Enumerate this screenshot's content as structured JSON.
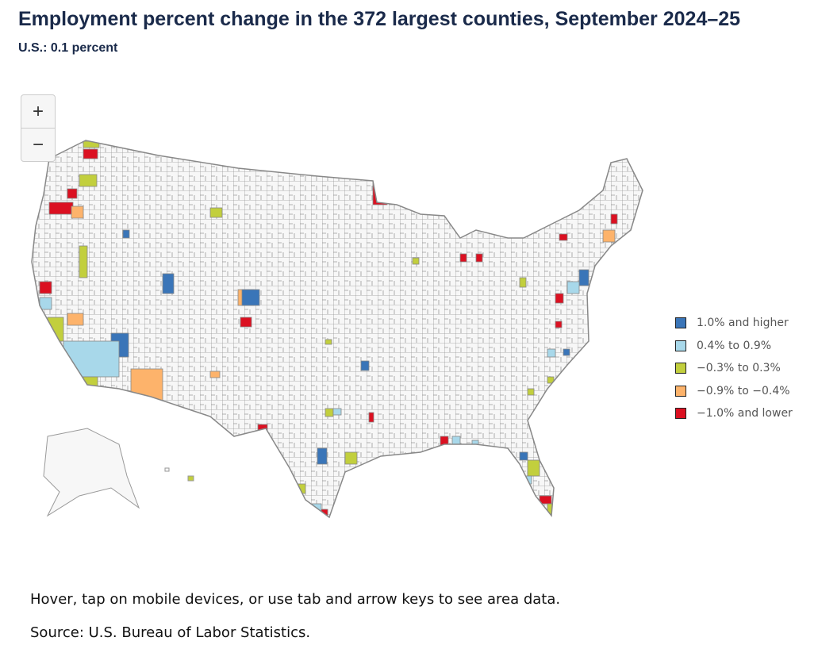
{
  "title": "Employment percent change in the 372 largest counties, September 2024–25",
  "subtitle": "U.S.: 0.1 percent",
  "zoom": {
    "in": "+",
    "out": "−"
  },
  "legend": [
    {
      "label": "1.0% and higher",
      "color": "#3a75b8"
    },
    {
      "label": "0.4% to 0.9%",
      "color": "#a8d8ea"
    },
    {
      "label": "−0.3% to 0.3%",
      "color": "#c2cf3d"
    },
    {
      "label": "−0.9% to −0.4%",
      "color": "#fdb36b"
    },
    {
      "label": "−1.0% and lower",
      "color": "#db1021"
    }
  ],
  "notes": {
    "hover": "Hover, tap on mobile devices, or use tab and arrow keys to see area data.",
    "source": "Source: U.S. Bureau of Labor Statistics."
  }
}
